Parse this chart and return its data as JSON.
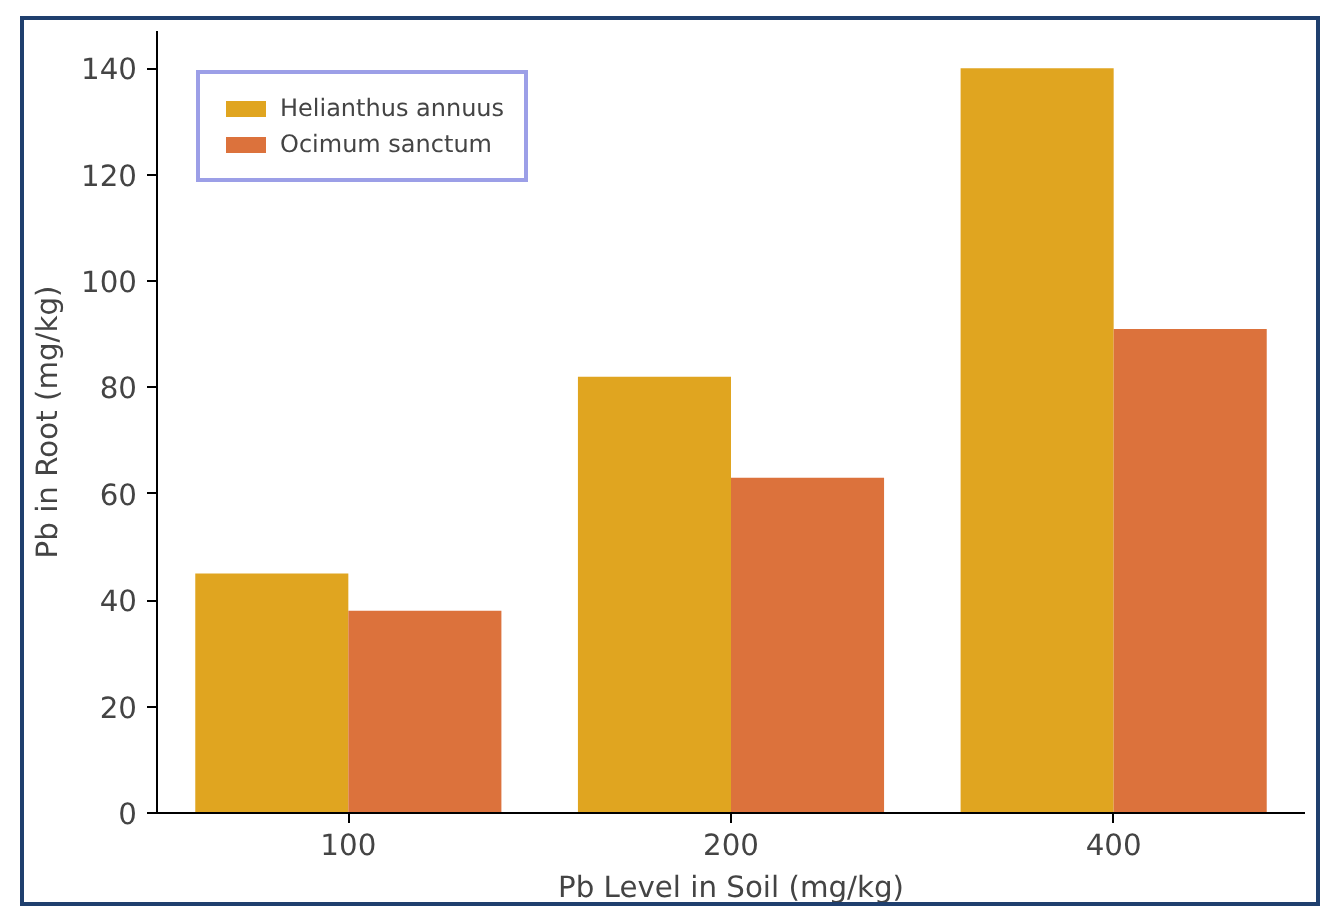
{
  "chart_data": {
    "type": "bar",
    "xlabel": "Pb Level in Soil (mg/kg)",
    "ylabel": "Pb in Root (mg/kg)",
    "categories": [
      "100",
      "200",
      "400"
    ],
    "series": [
      {
        "name": "Helianthus annuus",
        "color": "#e0a520",
        "values": [
          45,
          82,
          140
        ]
      },
      {
        "name": "Ocimum sanctum",
        "color": "#dc723c",
        "values": [
          38,
          63,
          91
        ]
      }
    ],
    "ylim": [
      0,
      147
    ],
    "yticks": [
      0,
      20,
      40,
      60,
      80,
      100,
      120,
      140
    ],
    "grid": false,
    "legend": "top left"
  }
}
